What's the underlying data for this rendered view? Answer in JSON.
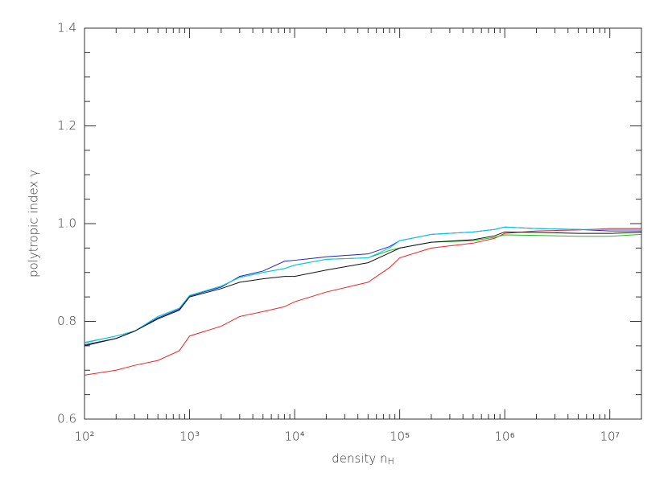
{
  "chart_data": {
    "type": "line",
    "xlabel": {
      "text": "density n",
      "subscript": "H"
    },
    "ylabel": "polytropic index γ",
    "x_scale": "log",
    "xlim": [
      100,
      20000000
    ],
    "ylim": [
      0.6,
      1.4
    ],
    "xticks": [
      {
        "value": 100,
        "label": "10²"
      },
      {
        "value": 1000,
        "label": "10³"
      },
      {
        "value": 10000,
        "label": "10⁴"
      },
      {
        "value": 100000,
        "label": "10⁵"
      },
      {
        "value": 1000000,
        "label": "10⁶"
      },
      {
        "value": 10000000,
        "label": "10⁷"
      }
    ],
    "yticks": [
      0.6,
      0.8,
      {
        "value": 1,
        "label": "1.0"
      },
      1.2,
      1.4
    ],
    "x": [
      100,
      200,
      300,
      500,
      800,
      1000,
      2000,
      3000,
      5000,
      8000,
      10000,
      20000,
      50000,
      80000,
      100000,
      200000,
      500000,
      800000,
      1000000,
      2000000,
      5000000,
      10000000,
      20000000
    ],
    "series": [
      {
        "color": "#ee2222",
        "values": [
          0.69,
          0.7,
          0.71,
          0.72,
          0.74,
          0.77,
          0.79,
          0.81,
          0.82,
          0.83,
          0.84,
          0.86,
          0.88,
          0.91,
          0.93,
          0.95,
          0.96,
          0.97,
          0.98,
          0.985,
          0.987,
          0.99,
          0.99
        ]
      },
      {
        "color": "#22bb22",
        "values": [
          0.756,
          0.77,
          0.78,
          0.81,
          0.827,
          0.853,
          0.872,
          0.89,
          0.9,
          0.908,
          0.915,
          0.927,
          0.93,
          0.945,
          0.95,
          0.962,
          0.965,
          0.972,
          0.977,
          0.976,
          0.974,
          0.974,
          0.978
        ]
      },
      {
        "color": "#2222cc",
        "values": [
          0.752,
          0.765,
          0.78,
          0.807,
          0.825,
          0.852,
          0.87,
          0.892,
          0.903,
          0.923,
          0.925,
          0.932,
          0.938,
          0.953,
          0.965,
          0.978,
          0.983,
          0.988,
          0.993,
          0.99,
          0.988,
          0.985,
          0.985
        ]
      },
      {
        "color": "#00ccee",
        "values": [
          0.757,
          0.77,
          0.78,
          0.81,
          0.827,
          0.853,
          0.872,
          0.89,
          0.9,
          0.908,
          0.915,
          0.927,
          0.93,
          0.95,
          0.965,
          0.978,
          0.983,
          0.988,
          0.993,
          0.99,
          0.988,
          0.988,
          0.988
        ]
      },
      {
        "color": "#111111",
        "values": [
          0.75,
          0.765,
          0.78,
          0.805,
          0.823,
          0.85,
          0.867,
          0.88,
          0.887,
          0.892,
          0.892,
          0.905,
          0.92,
          0.94,
          0.95,
          0.962,
          0.967,
          0.975,
          0.983,
          0.982,
          0.98,
          0.98,
          0.982
        ]
      }
    ]
  }
}
